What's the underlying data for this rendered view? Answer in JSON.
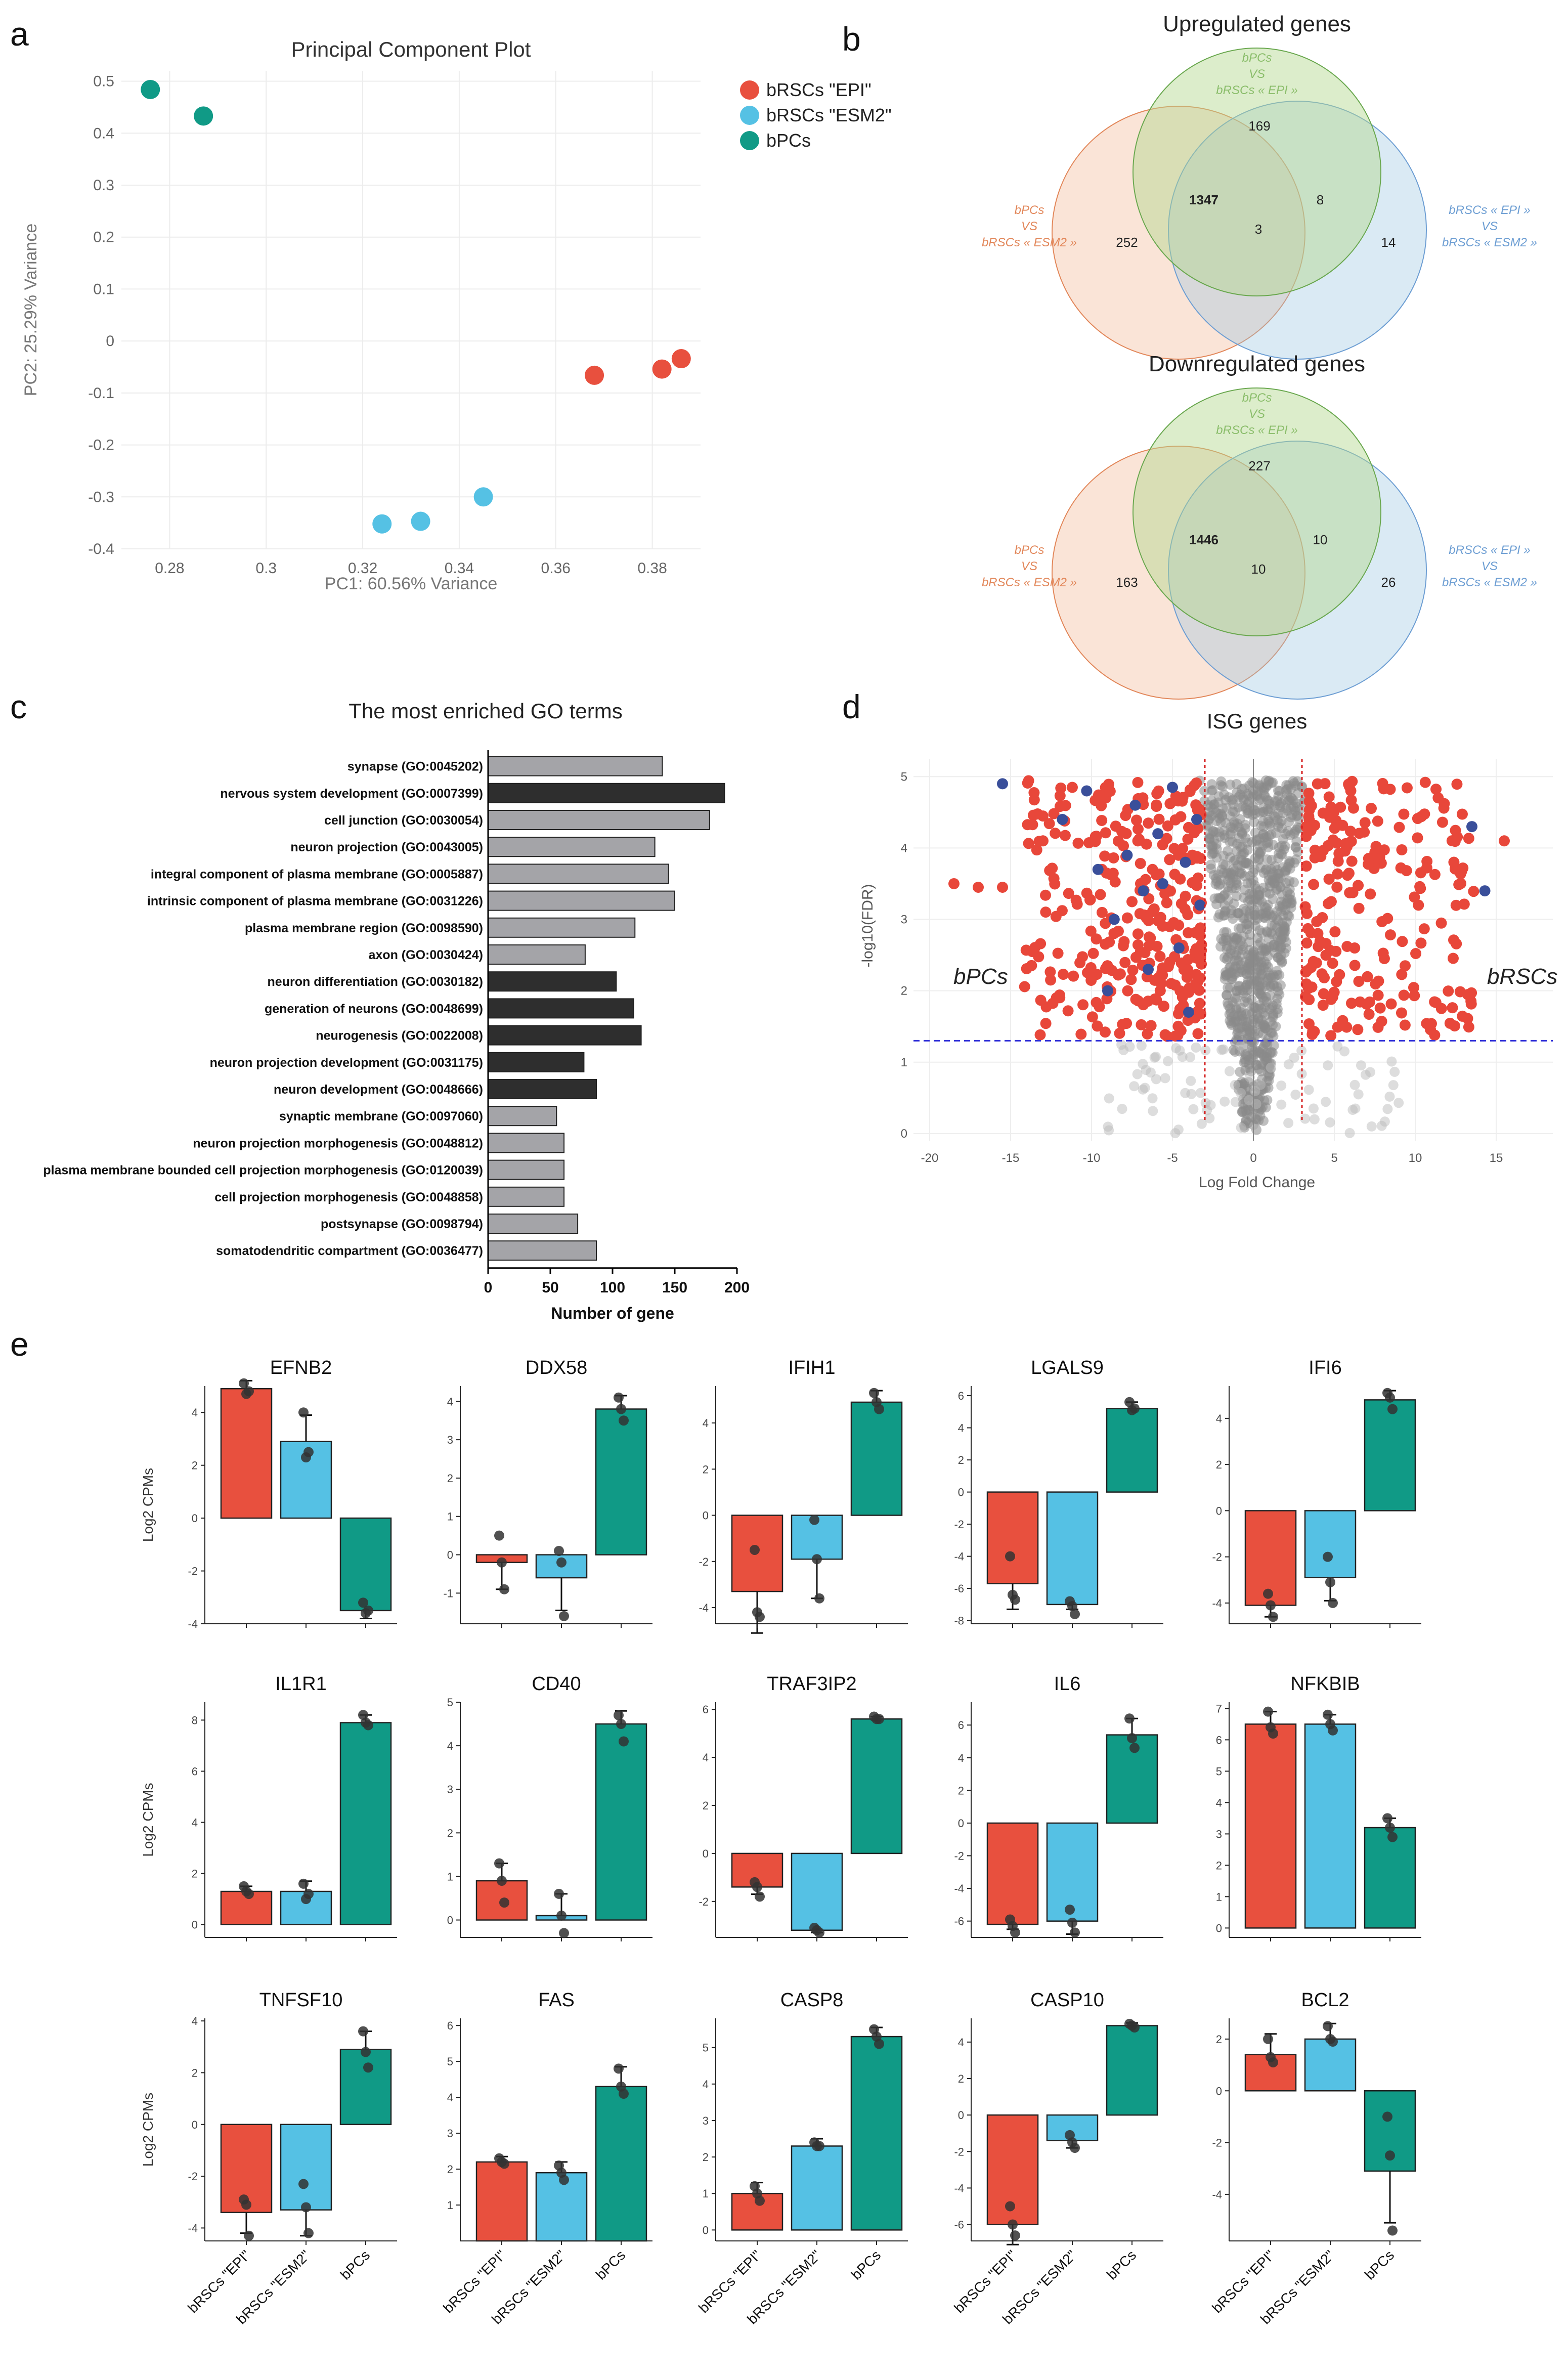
{
  "panels": {
    "a": "a",
    "b": "b",
    "c": "c",
    "d": "d",
    "e": "e"
  },
  "colors": {
    "epi": "#e8503e",
    "esm2": "#55c1e4",
    "bpcs": "#109a86",
    "bar_gray": "#a4a4a8",
    "bar_dark": "#2e2e2e",
    "volcano_red": "#e8473a",
    "volcano_gray": "#8a8a8a",
    "volcano_blue": "#3a4f9a",
    "venn_orange": "#e2875a",
    "venn_green": "#6aa84f",
    "venn_blue": "#6d9ed3"
  },
  "chart_data": [
    {
      "id": "pca",
      "type": "scatter",
      "title": "Principal Component Plot",
      "xlabel": "PC1: 60.56% Variance",
      "ylabel": "PC2: 25.29% Variance",
      "xlim": [
        0.27,
        0.39
      ],
      "ylim": [
        -0.4,
        0.52
      ],
      "xticks": [
        0.28,
        0.3,
        0.32,
        0.34,
        0.36,
        0.38
      ],
      "xtick_labels": [
        "0.28",
        "0.3",
        "0.32",
        "0.34",
        "0.36",
        "0.38"
      ],
      "yticks": [
        0.5,
        0.4,
        0.3,
        0.2,
        0.1,
        0,
        -0.1,
        -0.2,
        -0.3,
        -0.4
      ],
      "ytick_labels": [
        "0.5",
        "0.4",
        "0.3",
        "0.2",
        "0.1",
        "0",
        "-0.1",
        "-0.2",
        "-0.3",
        "-0.4"
      ],
      "legend": [
        "bRSCs \"EPI\"",
        "bRSCs \"ESM2\"",
        "bPCs"
      ],
      "series": [
        {
          "name": "bRSCs \"EPI\"",
          "x": [
            0.368,
            0.382,
            0.386
          ],
          "y": [
            -0.066,
            -0.054,
            -0.034
          ]
        },
        {
          "name": "bRSCs \"ESM2\"",
          "x": [
            0.324,
            0.332,
            0.345
          ],
          "y": [
            -0.352,
            -0.347,
            -0.3
          ]
        },
        {
          "name": "bPCs",
          "x": [
            0.276,
            0.287
          ],
          "y": [
            0.484,
            0.433
          ]
        }
      ]
    },
    {
      "id": "venn",
      "type": "venn",
      "sets": {
        "green": [
          "bPCs",
          "VS",
          "bRSCs « EPI »"
        ],
        "orange": [
          "bPCs",
          "VS",
          "bRSCs « ESM2 »"
        ],
        "blue": [
          "bRSCs « EPI »",
          "VS",
          "bRSCs « ESM2 »"
        ]
      },
      "diagrams": [
        {
          "title": "Upregulated genes",
          "green_only": "169",
          "orange_only": "252",
          "blue_only": "14",
          "orange_green": "1347",
          "green_blue": "8",
          "all": "3"
        },
        {
          "title": "Downregulated genes",
          "green_only": "227",
          "orange_only": "163",
          "blue_only": "26",
          "orange_green": "1446",
          "green_blue": "10",
          "all": "10"
        }
      ]
    },
    {
      "id": "go",
      "type": "bar",
      "orientation": "horizontal",
      "title": "The most enriched GO terms",
      "xlabel": "Number of gene",
      "xlim": [
        0,
        200
      ],
      "xticks": [
        0,
        50,
        100,
        150,
        200
      ],
      "categories": [
        "synapse (GO:0045202)",
        "nervous system development (GO:0007399)",
        "cell junction (GO:0030054)",
        "neuron projection (GO:0043005)",
        "integral component of plasma membrane (GO:0005887)",
        "intrinsic component of plasma membrane (GO:0031226)",
        "plasma membrane region (GO:0098590)",
        "axon (GO:0030424)",
        "neuron differentiation (GO:0030182)",
        "generation of neurons (GO:0048699)",
        "neurogenesis (GO:0022008)",
        "neuron projection development (GO:0031175)",
        "neuron development (GO:0048666)",
        "synaptic membrane (GO:0097060)",
        "neuron projection morphogenesis (GO:0048812)",
        "plasma membrane bounded cell projection morphogenesis (GO:0120039)",
        "cell projection morphogenesis (GO:0048858)",
        "postsynapse (GO:0098794)",
        "somatodendritic compartment (GO:0036477)"
      ],
      "values": [
        140,
        190,
        178,
        134,
        145,
        150,
        118,
        78,
        103,
        117,
        123,
        77,
        87,
        55,
        61,
        61,
        61,
        72,
        87
      ],
      "group": [
        "cc",
        "bp",
        "cc",
        "cc",
        "cc",
        "cc",
        "cc",
        "cc",
        "bp",
        "bp",
        "bp",
        "bp",
        "bp",
        "cc",
        "cc",
        "cc",
        "cc",
        "cc",
        "cc"
      ]
    },
    {
      "id": "volcano",
      "type": "scatter",
      "title": "ISG genes",
      "xlabel": "Log Fold Change",
      "ylabel": "-log10(FDR)",
      "xlim": [
        -21,
        18.5
      ],
      "ylim": [
        -0.1,
        5.25
      ],
      "xticks": [
        -20,
        -15,
        -10,
        -5,
        0,
        5,
        10,
        15
      ],
      "yticks": [
        0,
        1,
        2,
        3,
        4,
        5
      ],
      "fc_threshold": 3,
      "fdr_threshold": 1.3,
      "left_label": "bPCs",
      "right_label": "bRSCs",
      "isg_points": [
        {
          "x": -15.5,
          "y": 4.9
        },
        {
          "x": -11.8,
          "y": 4.4
        },
        {
          "x": -10.3,
          "y": 4.8
        },
        {
          "x": -9.6,
          "y": 3.7
        },
        {
          "x": -8.6,
          "y": 3.0
        },
        {
          "x": -7.8,
          "y": 3.9
        },
        {
          "x": -7.3,
          "y": 4.6
        },
        {
          "x": -6.5,
          "y": 2.3
        },
        {
          "x": -5.9,
          "y": 4.2
        },
        {
          "x": -5.6,
          "y": 3.5
        },
        {
          "x": -5.0,
          "y": 4.85
        },
        {
          "x": -4.6,
          "y": 2.6
        },
        {
          "x": -4.2,
          "y": 3.8
        },
        {
          "x": -4.0,
          "y": 1.7
        },
        {
          "x": -3.5,
          "y": 4.4
        },
        {
          "x": -3.3,
          "y": 3.2
        },
        {
          "x": -9.0,
          "y": 2.0
        },
        {
          "x": -6.8,
          "y": 3.4
        },
        {
          "x": 13.5,
          "y": 4.3
        },
        {
          "x": 14.3,
          "y": 3.4
        }
      ]
    },
    {
      "id": "expr",
      "type": "bar",
      "ylabel": "Log2 CPMs",
      "categories": [
        "bRSCs \"EPI\"",
        "bRSCs \"ESM2\"",
        "bPCs"
      ],
      "genes": [
        {
          "name": "EFNB2",
          "ylim": [
            -4,
            5
          ],
          "yticks": [
            -4,
            -2,
            0,
            2,
            4
          ],
          "values": [
            4.9,
            2.9,
            -3.5
          ],
          "err": [
            0.3,
            1.0,
            0.3
          ],
          "pts": [
            [
              5.1,
              4.7,
              4.8
            ],
            [
              4.0,
              2.3,
              2.5
            ],
            [
              -3.2,
              -3.6,
              -3.5
            ]
          ]
        },
        {
          "name": "DDX58",
          "ylim": [
            -1.8,
            4.4
          ],
          "yticks": [
            -1,
            0,
            1,
            2,
            3,
            4
          ],
          "values": [
            -0.2,
            -0.6,
            3.8
          ],
          "err": [
            0.7,
            0.85,
            0.35
          ],
          "pts": [
            [
              0.5,
              -0.2,
              -0.9
            ],
            [
              0.1,
              -0.2,
              -1.6
            ],
            [
              4.1,
              3.8,
              3.5
            ]
          ]
        },
        {
          "name": "IFIH1",
          "ylim": [
            -4.7,
            5.6
          ],
          "yticks": [
            -4,
            -2,
            0,
            2,
            4
          ],
          "values": [
            -3.3,
            -1.9,
            4.9
          ],
          "err": [
            1.8,
            1.7,
            0.5
          ],
          "pts": [
            [
              -1.5,
              -4.2,
              -4.4
            ],
            [
              -0.2,
              -1.9,
              -3.6
            ],
            [
              5.3,
              4.9,
              4.6
            ]
          ]
        },
        {
          "name": "LGALS9",
          "ylim": [
            -8.2,
            6.6
          ],
          "yticks": [
            -8,
            -6,
            -4,
            -2,
            0,
            2,
            4,
            6
          ],
          "values": [
            -5.7,
            -7.0,
            5.2
          ],
          "err": [
            1.6,
            0.3,
            0.4
          ],
          "pts": [
            [
              -4.0,
              -6.4,
              -6.7
            ],
            [
              -6.8,
              -7.1,
              -7.6
            ],
            [
              5.6,
              5.1,
              5.2
            ]
          ]
        },
        {
          "name": "IFI6",
          "ylim": [
            -4.9,
            5.4
          ],
          "yticks": [
            -4,
            -2,
            0,
            2,
            4
          ],
          "values": [
            -4.1,
            -2.9,
            4.8
          ],
          "err": [
            0.5,
            1.0,
            0.4
          ],
          "pts": [
            [
              -3.6,
              -4.1,
              -4.6
            ],
            [
              -2.0,
              -3.1,
              -4.0
            ],
            [
              5.1,
              4.9,
              4.4
            ]
          ]
        },
        {
          "name": "IL1R1",
          "ylim": [
            -0.5,
            8.7
          ],
          "yticks": [
            0,
            2,
            4,
            6,
            8
          ],
          "values": [
            1.3,
            1.3,
            7.9
          ],
          "err": [
            0.2,
            0.4,
            0.3
          ],
          "pts": [
            [
              1.5,
              1.3,
              1.2
            ],
            [
              1.6,
              1.0,
              1.2
            ],
            [
              8.2,
              7.9,
              7.8
            ]
          ]
        },
        {
          "name": "CD40",
          "ylim": [
            -0.4,
            5.0
          ],
          "yticks": [
            0,
            1,
            2,
            3,
            4,
            5
          ],
          "values": [
            0.9,
            0.1,
            4.5
          ],
          "err": [
            0.4,
            0.5,
            0.3
          ],
          "pts": [
            [
              1.3,
              0.9,
              0.4
            ],
            [
              0.6,
              0.1,
              -0.3
            ],
            [
              4.7,
              4.5,
              4.1
            ]
          ]
        },
        {
          "name": "TRAF3IP2",
          "ylim": [
            -3.5,
            6.3
          ],
          "yticks": [
            -2,
            0,
            2,
            4,
            6
          ],
          "values": [
            -1.4,
            -3.2,
            5.6
          ],
          "err": [
            0.3,
            0.1,
            0.1
          ],
          "pts": [
            [
              -1.2,
              -1.4,
              -1.8
            ],
            [
              -3.1,
              -3.2,
              -3.3
            ],
            [
              5.7,
              5.6,
              5.6
            ]
          ]
        },
        {
          "name": "IL6",
          "ylim": [
            -7.0,
            7.4
          ],
          "yticks": [
            -6,
            -4,
            -2,
            0,
            2,
            4,
            6
          ],
          "values": [
            -6.2,
            -6.0,
            5.4
          ],
          "err": [
            0.3,
            0.8,
            1.0
          ],
          "pts": [
            [
              -5.9,
              -6.3,
              -6.7
            ],
            [
              -5.3,
              -6.1,
              -6.7
            ],
            [
              6.4,
              5.2,
              4.6
            ]
          ]
        },
        {
          "name": "NFKBIB",
          "ylim": [
            -0.3,
            7.2
          ],
          "yticks": [
            0,
            1,
            2,
            3,
            4,
            5,
            6,
            7
          ],
          "values": [
            6.5,
            6.5,
            3.2
          ],
          "err": [
            0.4,
            0.3,
            0.3
          ],
          "pts": [
            [
              6.9,
              6.4,
              6.2
            ],
            [
              6.8,
              6.5,
              6.3
            ],
            [
              3.5,
              3.2,
              2.9
            ]
          ]
        },
        {
          "name": "TNFSF10",
          "ylim": [
            -4.5,
            4.1
          ],
          "yticks": [
            -4,
            -2,
            0,
            2,
            4
          ],
          "values": [
            -3.4,
            -3.3,
            2.9
          ],
          "err": [
            0.8,
            1.0,
            0.7
          ],
          "pts": [
            [
              -2.9,
              -3.1,
              -4.3
            ],
            [
              -2.3,
              -3.2,
              -4.2
            ],
            [
              3.6,
              2.8,
              2.2
            ]
          ]
        },
        {
          "name": "FAS",
          "ylim": [
            0,
            6.2
          ],
          "yticks": [
            1,
            2,
            3,
            4,
            5,
            6
          ],
          "values": [
            2.2,
            1.9,
            4.3
          ],
          "err": [
            0.15,
            0.3,
            0.55
          ],
          "pts": [
            [
              2.3,
              2.2,
              2.15
            ],
            [
              2.1,
              1.9,
              1.7
            ],
            [
              4.8,
              4.3,
              4.1
            ]
          ]
        },
        {
          "name": "CASP8",
          "ylim": [
            -0.3,
            5.8
          ],
          "yticks": [
            0,
            1,
            2,
            3,
            4,
            5
          ],
          "values": [
            1.0,
            2.3,
            5.3
          ],
          "err": [
            0.3,
            0.2,
            0.25
          ],
          "pts": [
            [
              1.2,
              1.0,
              0.8
            ],
            [
              2.4,
              2.3,
              2.3
            ],
            [
              5.5,
              5.3,
              5.1
            ]
          ]
        },
        {
          "name": "CASP10",
          "ylim": [
            -6.9,
            5.3
          ],
          "yticks": [
            -6,
            -4,
            -2,
            0,
            2,
            4
          ],
          "values": [
            -6.0,
            -1.4,
            4.9
          ],
          "err": [
            1.1,
            0.4,
            0.15
          ],
          "pts": [
            [
              -5.0,
              -6.0,
              -6.6
            ],
            [
              -1.1,
              -1.5,
              -1.8
            ],
            [
              5.0,
              4.9,
              4.8
            ]
          ]
        },
        {
          "name": "BCL2",
          "ylim": [
            -5.8,
            2.8
          ],
          "yticks": [
            -4,
            -2,
            0,
            2
          ],
          "values": [
            1.4,
            2.0,
            -3.1
          ],
          "err": [
            0.8,
            0.6,
            2.0
          ],
          "pts": [
            [
              2.0,
              1.3,
              1.1
            ],
            [
              2.5,
              2.0,
              1.9
            ],
            [
              -1.0,
              -2.5,
              -5.4
            ]
          ]
        }
      ]
    }
  ]
}
